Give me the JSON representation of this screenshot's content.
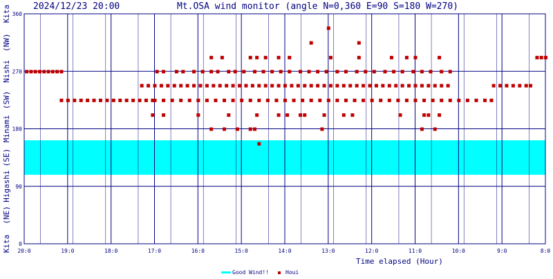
{
  "header": {
    "timestamp": "2024/12/23 20:00",
    "title": "Mt.OSA wind monitor (angle N=0,360 E=90 S=180 W=270)"
  },
  "chart_data": {
    "type": "scatter",
    "xlabel": "Time elapsed (Hour)",
    "x_tick_labels": [
      "20:0",
      "19:0",
      "18:0",
      "17:0",
      "16:0",
      "15:0",
      "14:0",
      "13:0",
      "12:0",
      "11:0",
      "10:0",
      "9:0",
      "8:0"
    ],
    "y_tick_values": [
      0,
      90,
      180,
      270,
      360
    ],
    "ylim": [
      0,
      360
    ],
    "x_range_hours_elapsed": [
      0,
      12
    ],
    "direction_labels": [
      "Kita",
      "(NE)",
      "Higashi",
      "(SE)",
      "Minami",
      "(SW)",
      "Nishi",
      "(NW)",
      "Kita"
    ],
    "good_wind_band": {
      "label": "Good Wind!!",
      "from": 108,
      "to": 162,
      "color": "#00ffff"
    },
    "series": [
      {
        "name": "Houi",
        "color": "#c00000",
        "points": [
          [
            0.05,
            270
          ],
          [
            0.15,
            270
          ],
          [
            0.25,
            270
          ],
          [
            0.35,
            270
          ],
          [
            0.45,
            270
          ],
          [
            0.55,
            270
          ],
          [
            0.65,
            270
          ],
          [
            0.75,
            270
          ],
          [
            0.85,
            270
          ],
          [
            0.85,
            225
          ],
          [
            1.0,
            225
          ],
          [
            1.15,
            225
          ],
          [
            1.3,
            225
          ],
          [
            1.45,
            225
          ],
          [
            1.6,
            225
          ],
          [
            1.75,
            225
          ],
          [
            1.9,
            225
          ],
          [
            2.05,
            225
          ],
          [
            2.2,
            225
          ],
          [
            2.35,
            225
          ],
          [
            2.5,
            225
          ],
          [
            2.65,
            225
          ],
          [
            2.8,
            225
          ],
          [
            2.95,
            225
          ],
          [
            2.7,
            248
          ],
          [
            2.85,
            248
          ],
          [
            3.0,
            248
          ],
          [
            3.15,
            248
          ],
          [
            3.3,
            248
          ],
          [
            3.45,
            248
          ],
          [
            3.6,
            248
          ],
          [
            3.75,
            248
          ],
          [
            3.9,
            248
          ],
          [
            4.05,
            248
          ],
          [
            4.2,
            248
          ],
          [
            4.35,
            248
          ],
          [
            4.5,
            248
          ],
          [
            4.65,
            248
          ],
          [
            4.8,
            248
          ],
          [
            4.95,
            248
          ],
          [
            5.1,
            248
          ],
          [
            5.25,
            248
          ],
          [
            5.4,
            248
          ],
          [
            5.55,
            248
          ],
          [
            5.7,
            248
          ],
          [
            5.85,
            248
          ],
          [
            6.0,
            248
          ],
          [
            6.15,
            248
          ],
          [
            6.3,
            248
          ],
          [
            6.45,
            248
          ],
          [
            6.6,
            248
          ],
          [
            6.75,
            248
          ],
          [
            6.9,
            248
          ],
          [
            7.05,
            248
          ],
          [
            7.2,
            248
          ],
          [
            7.35,
            248
          ],
          [
            7.5,
            248
          ],
          [
            7.65,
            248
          ],
          [
            7.8,
            248
          ],
          [
            7.95,
            248
          ],
          [
            8.1,
            248
          ],
          [
            8.25,
            248
          ],
          [
            8.4,
            248
          ],
          [
            8.55,
            248
          ],
          [
            8.7,
            248
          ],
          [
            8.85,
            248
          ],
          [
            9.0,
            248
          ],
          [
            9.15,
            248
          ],
          [
            9.3,
            248
          ],
          [
            9.45,
            248
          ],
          [
            9.6,
            248
          ],
          [
            9.75,
            248
          ],
          [
            3.0,
            225
          ],
          [
            3.2,
            225
          ],
          [
            3.4,
            225
          ],
          [
            3.6,
            225
          ],
          [
            3.8,
            225
          ],
          [
            4.0,
            225
          ],
          [
            4.2,
            225
          ],
          [
            4.4,
            225
          ],
          [
            4.6,
            225
          ],
          [
            4.8,
            225
          ],
          [
            5.0,
            225
          ],
          [
            5.2,
            225
          ],
          [
            5.4,
            225
          ],
          [
            5.6,
            225
          ],
          [
            5.8,
            225
          ],
          [
            6.0,
            225
          ],
          [
            6.2,
            225
          ],
          [
            6.4,
            225
          ],
          [
            6.6,
            225
          ],
          [
            6.8,
            225
          ],
          [
            7.0,
            225
          ],
          [
            7.2,
            225
          ],
          [
            7.4,
            225
          ],
          [
            7.6,
            225
          ],
          [
            7.8,
            225
          ],
          [
            8.0,
            225
          ],
          [
            8.2,
            225
          ],
          [
            8.4,
            225
          ],
          [
            8.6,
            225
          ],
          [
            8.8,
            225
          ],
          [
            9.0,
            225
          ],
          [
            9.2,
            225
          ],
          [
            9.4,
            225
          ],
          [
            9.6,
            225
          ],
          [
            9.8,
            225
          ],
          [
            10.0,
            225
          ],
          [
            10.2,
            225
          ],
          [
            10.4,
            225
          ],
          [
            10.6,
            225
          ],
          [
            10.75,
            225
          ],
          [
            3.05,
            270
          ],
          [
            3.2,
            270
          ],
          [
            3.5,
            270
          ],
          [
            3.65,
            270
          ],
          [
            3.9,
            270
          ],
          [
            4.1,
            270
          ],
          [
            4.3,
            270
          ],
          [
            4.45,
            270
          ],
          [
            4.7,
            270
          ],
          [
            4.85,
            270
          ],
          [
            5.05,
            270
          ],
          [
            5.3,
            270
          ],
          [
            5.5,
            270
          ],
          [
            5.7,
            270
          ],
          [
            5.9,
            270
          ],
          [
            6.1,
            270
          ],
          [
            6.35,
            270
          ],
          [
            6.55,
            270
          ],
          [
            6.75,
            270
          ],
          [
            6.95,
            270
          ],
          [
            7.2,
            270
          ],
          [
            7.4,
            270
          ],
          [
            7.65,
            270
          ],
          [
            7.85,
            270
          ],
          [
            8.05,
            270
          ],
          [
            8.3,
            270
          ],
          [
            8.5,
            270
          ],
          [
            8.7,
            270
          ],
          [
            8.95,
            270
          ],
          [
            9.15,
            270
          ],
          [
            9.35,
            270
          ],
          [
            9.6,
            270
          ],
          [
            9.8,
            270
          ],
          [
            4.3,
            292
          ],
          [
            4.55,
            292
          ],
          [
            5.2,
            292
          ],
          [
            5.35,
            292
          ],
          [
            5.55,
            292
          ],
          [
            5.85,
            292
          ],
          [
            6.1,
            292
          ],
          [
            7.05,
            292
          ],
          [
            7.7,
            292
          ],
          [
            8.45,
            292
          ],
          [
            8.8,
            292
          ],
          [
            9.0,
            292
          ],
          [
            9.55,
            292
          ],
          [
            6.6,
            315
          ],
          [
            7.7,
            315
          ],
          [
            7.0,
            338
          ],
          [
            2.95,
            202
          ],
          [
            3.2,
            202
          ],
          [
            4.0,
            202
          ],
          [
            4.7,
            202
          ],
          [
            5.35,
            202
          ],
          [
            5.85,
            202
          ],
          [
            6.05,
            202
          ],
          [
            6.35,
            202
          ],
          [
            6.45,
            202
          ],
          [
            6.9,
            202
          ],
          [
            7.35,
            202
          ],
          [
            7.55,
            202
          ],
          [
            8.65,
            202
          ],
          [
            9.2,
            202
          ],
          [
            9.3,
            202
          ],
          [
            9.55,
            202
          ],
          [
            4.3,
            180
          ],
          [
            4.6,
            180
          ],
          [
            4.9,
            180
          ],
          [
            5.2,
            180
          ],
          [
            5.3,
            180
          ],
          [
            6.85,
            180
          ],
          [
            9.15,
            180
          ],
          [
            9.45,
            180
          ],
          [
            5.4,
            157
          ],
          [
            10.8,
            248
          ],
          [
            10.95,
            248
          ],
          [
            11.1,
            248
          ],
          [
            11.25,
            248
          ],
          [
            11.4,
            248
          ],
          [
            11.55,
            248
          ],
          [
            11.65,
            248
          ],
          [
            11.8,
            292
          ],
          [
            11.9,
            292
          ],
          [
            12.0,
            292
          ]
        ]
      }
    ],
    "legend": [
      {
        "label": "Good Wind!!",
        "color": "#00ffff"
      },
      {
        "label": "Houi",
        "color": "#c00000"
      }
    ],
    "legend_position": "bottom-center",
    "grid": true
  }
}
